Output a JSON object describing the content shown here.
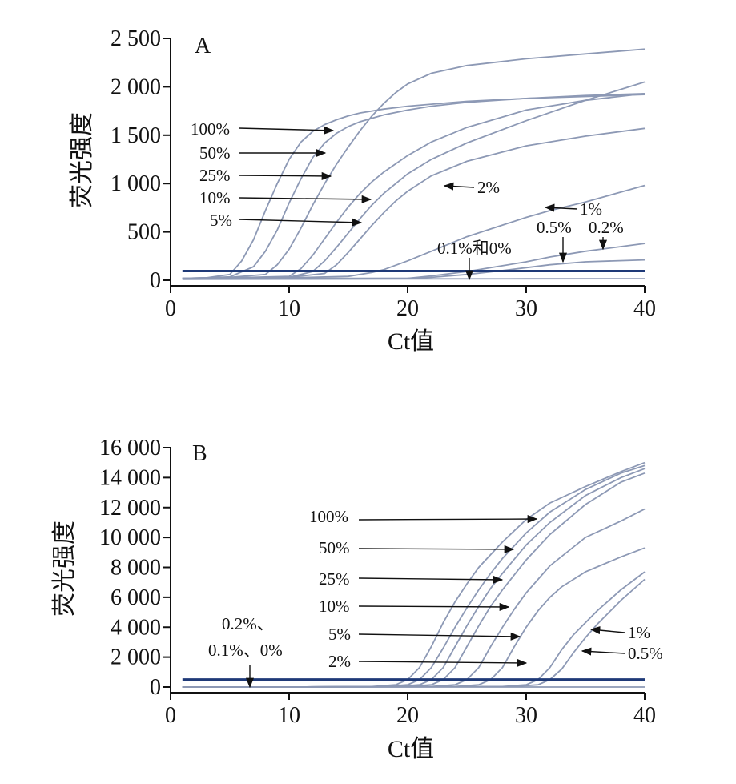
{
  "chart_data": [
    {
      "type": "line",
      "panel": "A",
      "xlabel": "Ct值",
      "ylabel": "荧光强度",
      "xlim": [
        0,
        40
      ],
      "ylim": [
        0,
        2500
      ],
      "xticks": [
        0,
        10,
        20,
        30,
        40
      ],
      "xtick_labels": [
        "0",
        "10",
        "20",
        "30",
        "40"
      ],
      "yticks": [
        0,
        500,
        1000,
        1500,
        2000,
        2500
      ],
      "ytick_labels": [
        "0",
        "500",
        "1 000",
        "1 500",
        "2 000",
        "2 500"
      ],
      "threshold": 95,
      "series": [
        {
          "name": "100%",
          "x": [
            1,
            3,
            5,
            6,
            7,
            8,
            9,
            10,
            11,
            12,
            13,
            14,
            15,
            16,
            18,
            20,
            22,
            25,
            30,
            35,
            40
          ],
          "y": [
            20,
            25,
            60,
            200,
            420,
            720,
            1000,
            1250,
            1430,
            1540,
            1610,
            1660,
            1700,
            1730,
            1770,
            1800,
            1820,
            1850,
            1880,
            1900,
            1920
          ]
        },
        {
          "name": "50%",
          "x": [
            1,
            3,
            5,
            7,
            8,
            9,
            10,
            11,
            12,
            13,
            14,
            15,
            16,
            18,
            20,
            22,
            25,
            30,
            35,
            40
          ],
          "y": [
            20,
            25,
            35,
            140,
            300,
            520,
            800,
            1050,
            1270,
            1420,
            1520,
            1590,
            1640,
            1710,
            1760,
            1800,
            1840,
            1880,
            1910,
            1930
          ]
        },
        {
          "name": "25%",
          "x": [
            1,
            5,
            8,
            9,
            10,
            11,
            12,
            13,
            14,
            15,
            16,
            17,
            18,
            19,
            20,
            22,
            25,
            30,
            35,
            40
          ],
          "y": [
            20,
            30,
            60,
            160,
            320,
            540,
            780,
            1000,
            1200,
            1380,
            1550,
            1700,
            1830,
            1940,
            2030,
            2140,
            2220,
            2290,
            2340,
            2390
          ]
        },
        {
          "name": "10%",
          "x": [
            1,
            5,
            10,
            11,
            12,
            13,
            14,
            15,
            16,
            17,
            18,
            20,
            22,
            25,
            30,
            35,
            40
          ],
          "y": [
            20,
            25,
            40,
            120,
            260,
            430,
            600,
            760,
            900,
            1020,
            1120,
            1290,
            1430,
            1580,
            1760,
            1860,
            1930
          ]
        },
        {
          "name": "5%",
          "x": [
            1,
            5,
            10,
            12,
            13,
            14,
            15,
            16,
            17,
            18,
            20,
            22,
            25,
            30,
            35,
            40
          ],
          "y": [
            20,
            25,
            30,
            90,
            200,
            340,
            490,
            640,
            780,
            900,
            1100,
            1250,
            1420,
            1650,
            1860,
            2050
          ]
        },
        {
          "name": "2%",
          "x": [
            1,
            5,
            10,
            13,
            14,
            15,
            16,
            17,
            18,
            19,
            20,
            22,
            25,
            30,
            35,
            40
          ],
          "y": [
            20,
            25,
            30,
            70,
            160,
            290,
            430,
            570,
            700,
            820,
            920,
            1080,
            1230,
            1390,
            1490,
            1570
          ]
        },
        {
          "name": "1%",
          "x": [
            1,
            10,
            15,
            17,
            18,
            20,
            22,
            25,
            28,
            30,
            32,
            35,
            40
          ],
          "y": [
            20,
            25,
            40,
            80,
            110,
            200,
            300,
            450,
            570,
            650,
            720,
            810,
            980
          ]
        },
        {
          "name": "0.5%",
          "x": [
            1,
            10,
            20,
            22,
            25,
            28,
            30,
            32,
            35,
            40
          ],
          "y": [
            15,
            20,
            20,
            45,
            90,
            150,
            190,
            240,
            300,
            380
          ]
        },
        {
          "name": "0.2%",
          "x": [
            1,
            10,
            20,
            22,
            25,
            28,
            30,
            32,
            35,
            40
          ],
          "y": [
            15,
            15,
            20,
            30,
            60,
            100,
            130,
            160,
            190,
            210
          ]
        },
        {
          "name": "0.1%和0%",
          "x": [
            1,
            10,
            20,
            30,
            40
          ],
          "y": [
            10,
            12,
            14,
            15,
            16
          ]
        }
      ],
      "annotations": [
        "100%",
        "50%",
        "25%",
        "10%",
        "5%",
        "2%",
        "1%",
        "0.5%",
        "0.2%",
        "0.1%和0%"
      ]
    },
    {
      "type": "line",
      "panel": "B",
      "xlabel": "Ct值",
      "ylabel": "荧光强度",
      "xlim": [
        0,
        40
      ],
      "ylim": [
        0,
        16000
      ],
      "xticks": [
        0,
        10,
        20,
        30,
        40
      ],
      "xtick_labels": [
        "0",
        "10",
        "20",
        "30",
        "40"
      ],
      "yticks": [
        0,
        2000,
        4000,
        6000,
        8000,
        10000,
        12000,
        14000,
        16000
      ],
      "ytick_labels": [
        "0",
        "2 000",
        "4 000",
        "6 000",
        "8 000",
        "10 000",
        "12 000",
        "14 000",
        "16 000"
      ],
      "threshold": 500,
      "series": [
        {
          "name": "100%",
          "x": [
            1,
            10,
            17,
            19,
            20,
            21,
            22,
            23,
            24,
            25,
            26,
            28,
            30,
            32,
            35,
            38,
            40
          ],
          "y": [
            0,
            0,
            30,
            150,
            500,
            1300,
            2700,
            4300,
            5700,
            6900,
            8000,
            9700,
            11200,
            12300,
            13400,
            14400,
            15000
          ]
        },
        {
          "name": "50%",
          "x": [
            1,
            10,
            18,
            20,
            21,
            22,
            23,
            24,
            25,
            26,
            27,
            28,
            30,
            32,
            35,
            38,
            40
          ],
          "y": [
            0,
            0,
            30,
            150,
            500,
            1300,
            2600,
            4000,
            5300,
            6500,
            7600,
            8600,
            10300,
            11700,
            13200,
            14300,
            14800
          ]
        },
        {
          "name": "25%",
          "x": [
            1,
            10,
            19,
            21,
            22,
            23,
            24,
            25,
            26,
            27,
            28,
            30,
            32,
            35,
            38,
            40
          ],
          "y": [
            0,
            0,
            30,
            150,
            500,
            1300,
            2700,
            4100,
            5400,
            6600,
            7600,
            9500,
            11000,
            12800,
            14000,
            14600
          ]
        },
        {
          "name": "10%",
          "x": [
            1,
            10,
            20,
            22,
            23,
            24,
            25,
            26,
            27,
            28,
            29,
            30,
            32,
            35,
            38,
            40
          ],
          "y": [
            0,
            0,
            30,
            150,
            500,
            1300,
            2700,
            4100,
            5400,
            6500,
            7500,
            8500,
            10200,
            12200,
            13700,
            14300
          ]
        },
        {
          "name": "5%",
          "x": [
            1,
            10,
            22,
            24,
            25,
            26,
            27,
            28,
            29,
            30,
            31,
            32,
            35,
            38,
            40
          ],
          "y": [
            0,
            0,
            30,
            150,
            500,
            1300,
            2700,
            4000,
            5200,
            6300,
            7200,
            8100,
            10000,
            11100,
            11900
          ]
        },
        {
          "name": "2%",
          "x": [
            1,
            10,
            24,
            26,
            27,
            28,
            29,
            30,
            31,
            32,
            33,
            35,
            38,
            40
          ],
          "y": [
            0,
            0,
            30,
            150,
            500,
            1300,
            2700,
            4000,
            5100,
            6000,
            6700,
            7700,
            8700,
            9300
          ]
        },
        {
          "name": "1%",
          "x": [
            1,
            10,
            28,
            30,
            31,
            32,
            33,
            34,
            35,
            36,
            38,
            40
          ],
          "y": [
            0,
            0,
            30,
            150,
            500,
            1300,
            2500,
            3500,
            4300,
            5100,
            6500,
            7700
          ]
        },
        {
          "name": "0.5%",
          "x": [
            1,
            10,
            29,
            31,
            32,
            33,
            34,
            35,
            36,
            38,
            40
          ],
          "y": [
            0,
            0,
            30,
            150,
            500,
            1200,
            2300,
            3300,
            4200,
            5800,
            7200
          ]
        },
        {
          "name": "0.2%、0.1%、0%",
          "x": [
            1,
            10,
            20,
            30,
            40
          ],
          "y": [
            0,
            0,
            0,
            0,
            0
          ]
        }
      ],
      "annotations": [
        "100%",
        "50%",
        "25%",
        "10%",
        "5%",
        "2%",
        "1%",
        "0.5%",
        "0.2%、",
        "0.1%、0%"
      ]
    }
  ]
}
